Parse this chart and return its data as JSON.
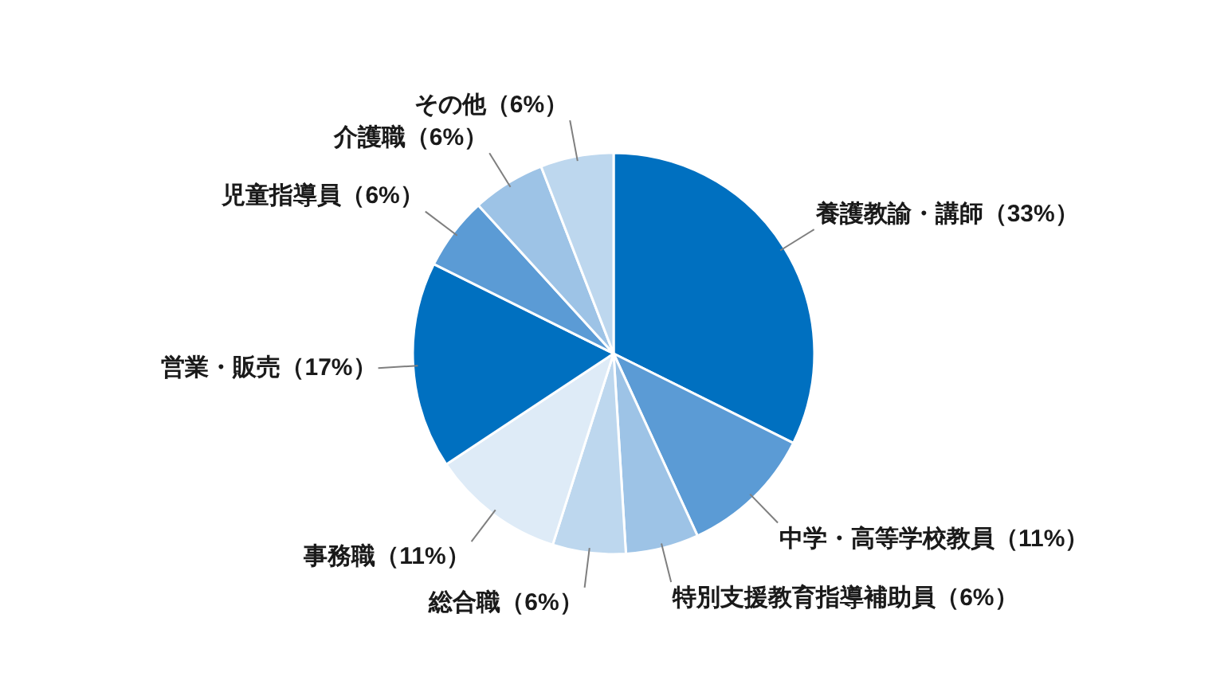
{
  "chart_data": {
    "type": "pie",
    "categories": [
      "養護教諭・講師",
      "中学・高等学校教員",
      "特別支援教育指導補助員",
      "総合職",
      "事務職",
      "営業・販売",
      "児童指導員",
      "介護職",
      "その他"
    ],
    "values": [
      33,
      11,
      6,
      6,
      11,
      17,
      6,
      6,
      6
    ],
    "colors": [
      "#0070c0",
      "#5b9bd5",
      "#9dc3e6",
      "#bdd7ee",
      "#deebf7",
      "#0070c0",
      "#5b9bd5",
      "#9dc3e6",
      "#bdd7ee"
    ],
    "value_labels": [
      "（33%）",
      "（11%）",
      "（6%）",
      "（6%）",
      "（11%）",
      "（17%）",
      "（6%）",
      "（6%）",
      "（6%）"
    ]
  }
}
